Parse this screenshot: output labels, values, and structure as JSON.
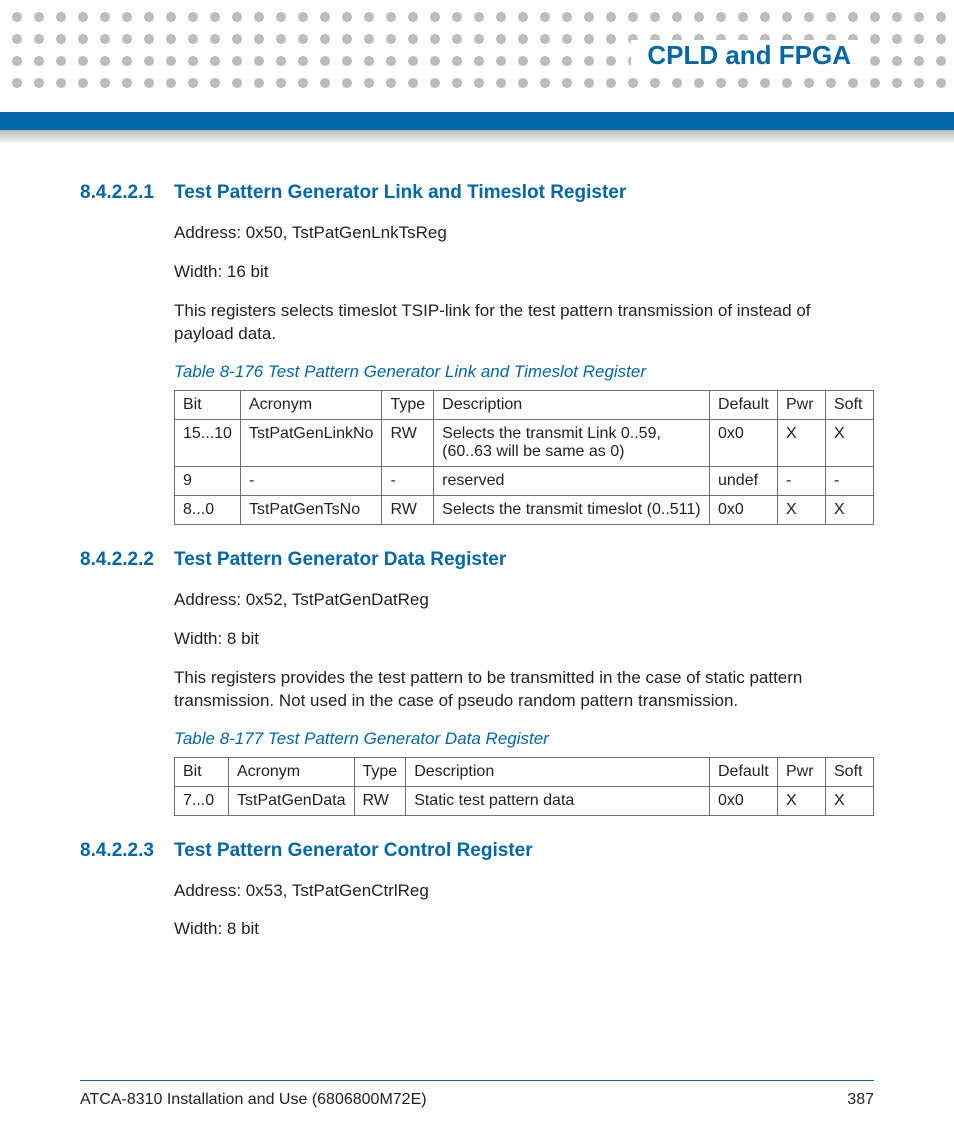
{
  "colors": {
    "accent": "#0067a6",
    "text": "#231f20",
    "dot": "#bdbdbd",
    "table_border": "#6d6e71"
  },
  "header": {
    "chapter_title": "CPLD and FPGA"
  },
  "sections": [
    {
      "number": "8.4.2.2.1",
      "title": "Test Pattern Generator Link and Timeslot Register",
      "paras": [
        "Address: 0x50, TstPatGenLnkTsReg",
        "Width: 16 bit",
        "This registers selects timeslot TSIP-link for the test pattern transmission of instead of payload data."
      ],
      "table": {
        "caption": "Table 8-176 Test Pattern Generator Link and Timeslot Register",
        "columns": [
          "Bit",
          "Acronym",
          "Type",
          "Description",
          "Default",
          "Pwr",
          "Soft"
        ],
        "col_widths": [
          "62px",
          "130px",
          "50px",
          "auto",
          "68px",
          "48px",
          "48px"
        ],
        "rows": [
          [
            "15...10",
            "TstPatGenLinkNo",
            "RW",
            "Selects the transmit Link 0..59, (60..63 will be same as 0)",
            "0x0",
            "X",
            "X"
          ],
          [
            "9",
            "-",
            "-",
            "reserved",
            "undef",
            "-",
            "-"
          ],
          [
            "8...0",
            "TstPatGenTsNo",
            "RW",
            "Selects the transmit timeslot (0..511)",
            "0x0",
            "X",
            "X"
          ]
        ]
      }
    },
    {
      "number": "8.4.2.2.2",
      "title": "Test Pattern Generator Data Register",
      "paras": [
        "Address: 0x52, TstPatGenDatReg",
        "Width: 8 bit",
        "This registers provides the test pattern to be transmitted in the case of static pattern transmission. Not used in the case of pseudo random pattern transmission."
      ],
      "table": {
        "caption": "Table 8-177 Test Pattern Generator Data Register",
        "columns": [
          "Bit",
          "Acronym",
          "Type",
          "Description",
          "Default",
          "Pwr",
          "Soft"
        ],
        "col_widths": [
          "54px",
          "120px",
          "50px",
          "auto",
          "68px",
          "48px",
          "48px"
        ],
        "rows": [
          [
            "7...0",
            "TstPatGenData",
            "RW",
            "Static test pattern data",
            "0x0",
            "X",
            "X"
          ]
        ]
      }
    },
    {
      "number": "8.4.2.2.3",
      "title": "Test Pattern Generator Control Register",
      "paras": [
        "Address: 0x53, TstPatGenCtrlReg",
        "Width: 8 bit"
      ],
      "table": null
    }
  ],
  "footer": {
    "doc_title": "ATCA-8310 Installation and Use (6806800M72E)",
    "page_number": "387"
  }
}
